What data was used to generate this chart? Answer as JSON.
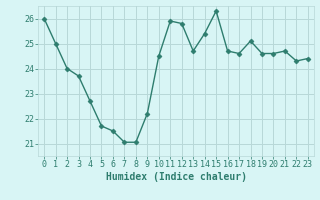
{
  "x": [
    0,
    1,
    2,
    3,
    4,
    5,
    6,
    7,
    8,
    9,
    10,
    11,
    12,
    13,
    14,
    15,
    16,
    17,
    18,
    19,
    20,
    21,
    22,
    23
  ],
  "y": [
    26.0,
    25.0,
    24.0,
    23.7,
    22.7,
    21.7,
    21.5,
    21.05,
    21.05,
    22.2,
    24.5,
    25.9,
    25.8,
    24.7,
    25.4,
    26.3,
    24.7,
    24.6,
    25.1,
    24.6,
    24.6,
    24.7,
    24.3,
    24.4
  ],
  "line_color": "#2e7d6e",
  "marker": "D",
  "marker_size": 2.5,
  "bg_color": "#d8f5f5",
  "grid_color": "#b8d8d8",
  "xlabel": "Humidex (Indice chaleur)",
  "xlim": [
    -0.5,
    23.5
  ],
  "ylim": [
    20.5,
    26.5
  ],
  "yticks": [
    21,
    22,
    23,
    24,
    25,
    26
  ],
  "xticks": [
    0,
    1,
    2,
    3,
    4,
    5,
    6,
    7,
    8,
    9,
    10,
    11,
    12,
    13,
    14,
    15,
    16,
    17,
    18,
    19,
    20,
    21,
    22,
    23
  ],
  "xlabel_fontsize": 7,
  "tick_fontsize": 6,
  "line_width": 1.0
}
